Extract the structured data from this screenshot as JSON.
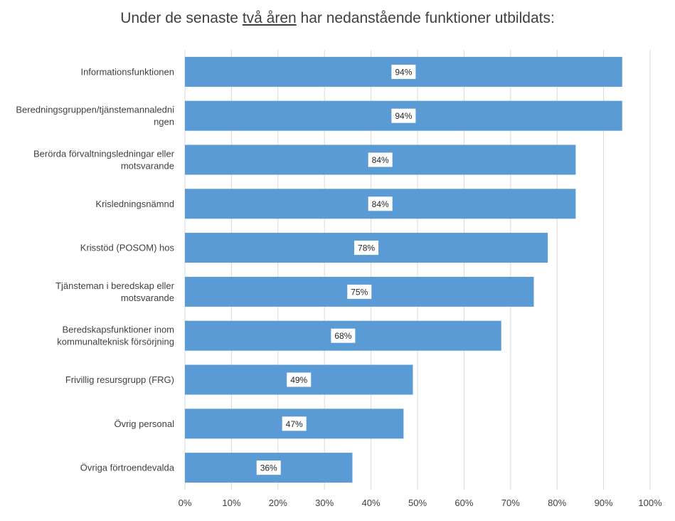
{
  "title": {
    "before": "Under de senaste ",
    "underlined": "två åren",
    "after": " har nedanstående funktioner utbildats:"
  },
  "chart_data": {
    "type": "bar",
    "orientation": "horizontal",
    "categories": [
      "Informationsfunktionen",
      "Beredningsgruppen/tjänstemannaledningen",
      "Berörda förvaltningsledningar eller motsvarande",
      "Krisledningsnämnd",
      "Krisstöd (POSOM) hos",
      "Tjänsteman i beredskap eller motsvarande",
      "Beredskapsfunktioner inom kommunalteknisk försörjning",
      "Frivillig resursgrupp (FRG)",
      "Övrig personal",
      "Övriga förtroendevalda"
    ],
    "category_display_lines": [
      [
        "Informationsfunktionen"
      ],
      [
        "Beredningsgruppen/tjänstemannaledni",
        "ngen"
      ],
      [
        "Berörda förvaltningsledningar eller",
        "motsvarande"
      ],
      [
        "Krisledningsnämnd"
      ],
      [
        "Krisstöd (POSOM) hos"
      ],
      [
        "Tjänsteman i beredskap eller",
        "motsvarande"
      ],
      [
        "Beredskapsfunktioner inom",
        "kommunalteknisk försörjning"
      ],
      [
        "Frivillig resursgrupp (FRG)"
      ],
      [
        "Övrig personal"
      ],
      [
        "Övriga förtroendevalda"
      ]
    ],
    "values": [
      94,
      94,
      84,
      84,
      78,
      75,
      68,
      49,
      47,
      36
    ],
    "data_labels": [
      "94%",
      "94%",
      "84%",
      "84%",
      "78%",
      "75%",
      "68%",
      "49%",
      "47%",
      "36%"
    ],
    "x_ticks": [
      "0%",
      "10%",
      "20%",
      "30%",
      "40%",
      "50%",
      "60%",
      "70%",
      "80%",
      "90%",
      "100%"
    ],
    "xlim": [
      0,
      100
    ],
    "grid": "vertical",
    "bar_color": "#5b9bd5",
    "grid_color": "#d9d9d9",
    "legend": "none"
  }
}
